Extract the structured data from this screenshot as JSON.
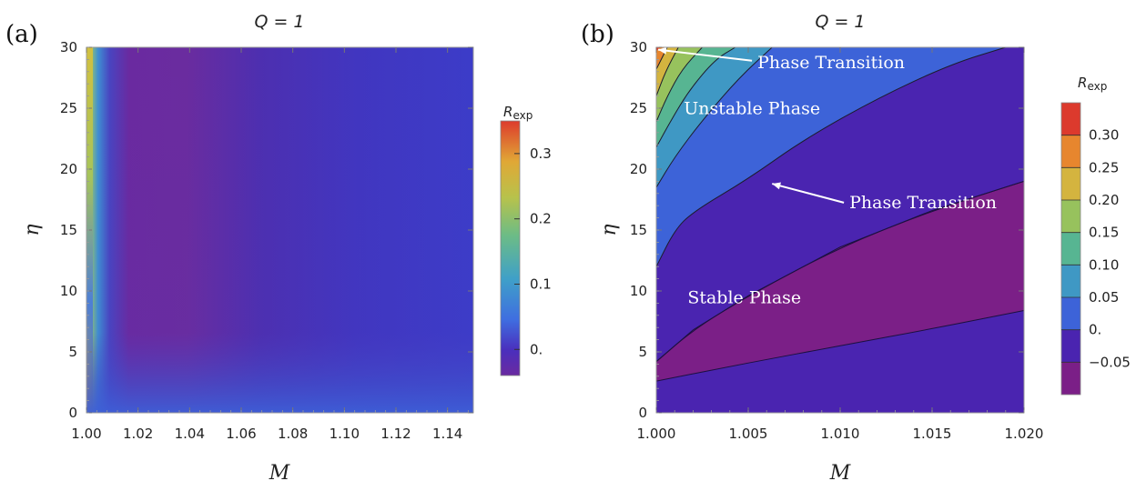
{
  "chart_data": [
    {
      "panel": "(a)",
      "type": "heatmap",
      "title": "Q = 1",
      "xlabel": "M",
      "ylabel": "η",
      "xlim": [
        1.0,
        1.15
      ],
      "ylim": [
        0,
        30
      ],
      "x_ticks": [
        "1.00",
        "1.02",
        "1.04",
        "1.06",
        "1.08",
        "1.10",
        "1.12",
        "1.14"
      ],
      "x_tick_values": [
        1.0,
        1.02,
        1.04,
        1.06,
        1.08,
        1.1,
        1.12,
        1.14
      ],
      "y_ticks": [
        "0",
        "5",
        "10",
        "15",
        "20",
        "25",
        "30"
      ],
      "y_tick_values": [
        0,
        5,
        10,
        15,
        20,
        25,
        30
      ],
      "colorbar": {
        "title": "R",
        "title_subscript": "exp",
        "range": [
          -0.04,
          0.35
        ],
        "ticks": [
          "0.",
          "0.1",
          "0.2",
          "0.3"
        ],
        "tick_values": [
          0,
          0.1,
          0.2,
          0.3
        ]
      },
      "colors": [
        "#4b1a82",
        "#6a2aa0",
        "#3e39c4",
        "#3b6fe0",
        "#3ea0c8",
        "#5cb98a",
        "#a5c354",
        "#d8b33c",
        "#e8832d",
        "#df3b2c"
      ]
    },
    {
      "panel": "(b)",
      "type": "heatmap",
      "variant": "contour",
      "title": "Q = 1",
      "xlabel": "M",
      "ylabel": "η",
      "xlim": [
        1.0,
        1.02
      ],
      "ylim": [
        0,
        30
      ],
      "x_ticks": [
        "1.000",
        "1.005",
        "1.010",
        "1.015",
        "1.020"
      ],
      "x_tick_values": [
        1.0,
        1.005,
        1.01,
        1.015,
        1.02
      ],
      "y_ticks": [
        "0",
        "5",
        "10",
        "15",
        "20",
        "25",
        "30"
      ],
      "y_tick_values": [
        0,
        5,
        10,
        15,
        20,
        25,
        30
      ],
      "contour_levels": [
        -0.05,
        0,
        0.05,
        0.1,
        0.15,
        0.2,
        0.25,
        0.3
      ],
      "level_colors": [
        "#7b1f87",
        "#4a24b0",
        "#3d63d8",
        "#3f98c4",
        "#57b592",
        "#97c25d",
        "#d4b43f",
        "#e7862e",
        "#dc3a2d"
      ],
      "boundaries": {
        "lower_zero_contour": {
          "M": [
            1.0,
            1.005,
            1.01,
            1.015,
            1.02
          ],
          "eta": [
            2.6,
            4.1,
            5.5,
            6.9,
            8.4
          ]
        },
        "upper_zero_contour": {
          "M": [
            1.0,
            1.002,
            1.005,
            1.01,
            1.015,
            1.02
          ],
          "eta": [
            4.2,
            6.8,
            9.6,
            13.6,
            16.6,
            19.0
          ]
        },
        "phase_transition_contour": {
          "M": [
            1.0,
            1.001,
            1.002,
            1.005,
            1.008,
            1.012,
            1.016,
            1.019
          ],
          "eta": [
            12.0,
            15.0,
            16.5,
            19.2,
            22.4,
            25.8,
            28.6,
            30.0
          ]
        },
        "contour_0.10": {
          "M": [
            1.0,
            1.001,
            1.0025,
            1.0045,
            1.0063
          ],
          "eta": [
            18.5,
            21.0,
            24.0,
            27.5,
            30.0
          ]
        },
        "contour_0.15": {
          "M": [
            1.0,
            1.0008,
            1.0018,
            1.0032,
            1.0043
          ],
          "eta": [
            21.8,
            24.0,
            26.5,
            29.0,
            30.0
          ]
        },
        "contour_0.20": {
          "M": [
            1.0,
            1.0006,
            1.0014,
            1.0025
          ],
          "eta": [
            23.9,
            26.0,
            28.2,
            30.0
          ]
        },
        "contour_0.25": {
          "M": [
            1.0,
            1.0005,
            1.0012
          ],
          "eta": [
            26.0,
            28.0,
            30.0
          ]
        },
        "contour_0.30": {
          "M": [
            1.0,
            1.0003,
            1.0006
          ],
          "eta": [
            28.2,
            29.1,
            30.0
          ]
        }
      },
      "annotations": [
        {
          "text": "Phase Transition",
          "M": 1.0055,
          "eta": 28.3,
          "arrow_to": {
            "M": 1.0001,
            "eta": 29.8
          }
        },
        {
          "text": "Unstable Phase",
          "M": 1.0015,
          "eta": 24.5
        },
        {
          "text": "Phase Transition",
          "M": 1.0105,
          "eta": 16.8,
          "arrow_to": {
            "M": 1.0063,
            "eta": 18.8
          }
        },
        {
          "text": "Stable Phase",
          "M": 1.0017,
          "eta": 9.0
        }
      ],
      "colorbar": {
        "title": "R",
        "title_subscript": "exp",
        "range": [
          -0.1,
          0.35
        ],
        "ticks": [
          "0.30",
          "0.25",
          "0.20",
          "0.15",
          "0.10",
          "0.05",
          "0.",
          "−0.05"
        ],
        "tick_values": [
          0.3,
          0.25,
          0.2,
          0.15,
          0.1,
          0.05,
          0,
          -0.05
        ]
      }
    }
  ]
}
